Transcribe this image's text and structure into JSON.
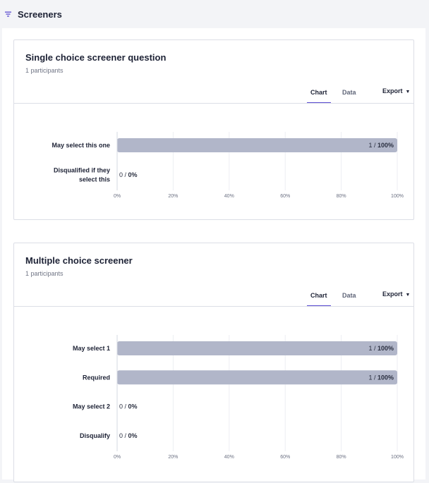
{
  "header": {
    "title": "Screeners",
    "icon": "filter-icon"
  },
  "cards": [
    {
      "title": "Single choice screener question",
      "participants": "1 participants",
      "tabs": [
        "Chart",
        "Data"
      ],
      "active_tab": "Chart",
      "export_label": "Export",
      "chart_data": {
        "type": "bar",
        "orientation": "horizontal",
        "categories": [
          "May select this one",
          "Disqualified if they select this"
        ],
        "counts": [
          1,
          0
        ],
        "total": 1,
        "values": [
          100,
          0
        ],
        "labels": [
          "1 / 100%",
          "0 / 0%"
        ],
        "xlim": [
          0,
          100
        ],
        "xticks": [
          "0%",
          "20%",
          "40%",
          "60%",
          "80%",
          "100%"
        ],
        "bar_color": "#b1b6c9",
        "grid": true
      }
    },
    {
      "title": "Multiple choice screener",
      "participants": "1 participants",
      "tabs": [
        "Chart",
        "Data"
      ],
      "active_tab": "Chart",
      "export_label": "Export",
      "chart_data": {
        "type": "bar",
        "orientation": "horizontal",
        "categories": [
          "May select 1",
          "Required",
          "May select 2",
          "Disqualify"
        ],
        "counts": [
          1,
          1,
          0,
          0
        ],
        "total": 1,
        "values": [
          100,
          100,
          0,
          0
        ],
        "labels": [
          "1 / 100%",
          "1 / 100%",
          "0 / 0%",
          "0 / 0%"
        ],
        "xlim": [
          0,
          100
        ],
        "xticks": [
          "0%",
          "20%",
          "40%",
          "60%",
          "80%",
          "100%"
        ],
        "bar_color": "#b1b6c9",
        "grid": true
      }
    }
  ]
}
